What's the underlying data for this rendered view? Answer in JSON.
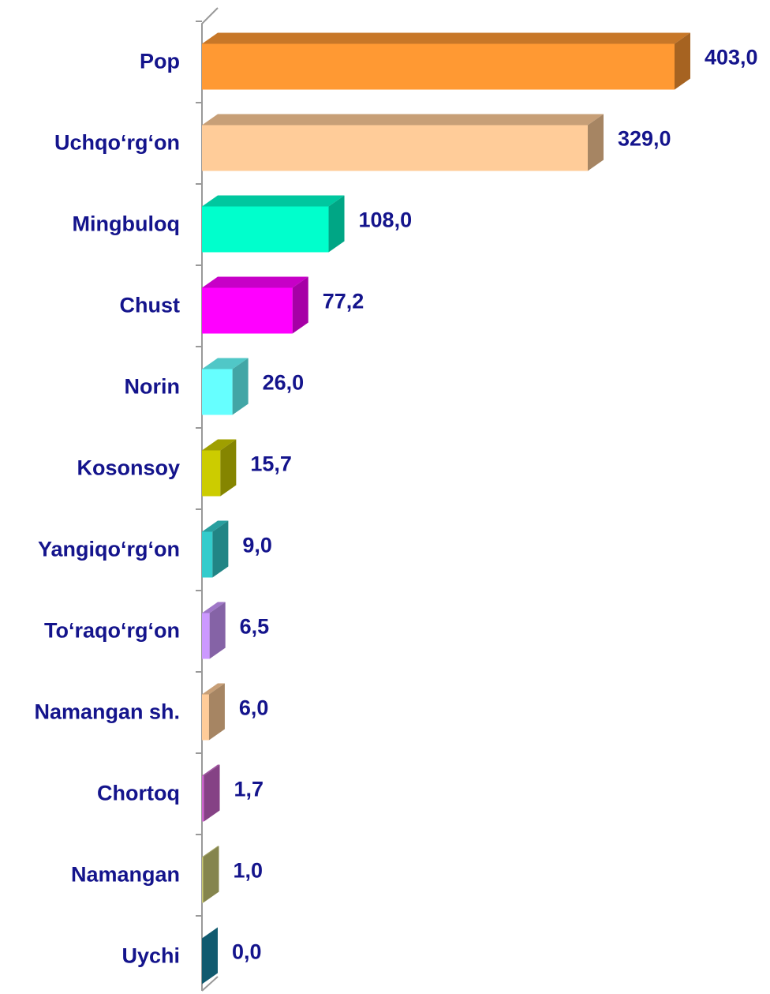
{
  "chart_data": {
    "type": "hbar3d",
    "categories": [
      "Pop",
      "Uchqo‘rg‘on",
      "Mingbuloq",
      "Chust",
      "Norin",
      "Kosonsoy",
      "Yangiqo‘rg‘on",
      "To‘raqo‘rg‘on",
      "Namangan sh.",
      "Chortoq",
      "Namangan",
      "Uychi"
    ],
    "values": [
      403.0,
      329.0,
      108.0,
      77.2,
      26.0,
      15.7,
      9.0,
      6.5,
      6.0,
      1.7,
      1.0,
      0.0
    ],
    "value_labels": [
      "403,0",
      "329,0",
      "108,0",
      "77,2",
      "26,0",
      "15,7",
      "9,0",
      "6,5",
      "6,0",
      "1,7",
      "1,0",
      "0,0"
    ],
    "colors": [
      "#ff9933",
      "#ffcc99",
      "#00ffcc",
      "#ff00ff",
      "#66ffff",
      "#cccc00",
      "#33cccc",
      "#cc99ff",
      "#ffcc99",
      "#cc66cc",
      "#cccc77",
      "#1a8aaa"
    ]
  }
}
